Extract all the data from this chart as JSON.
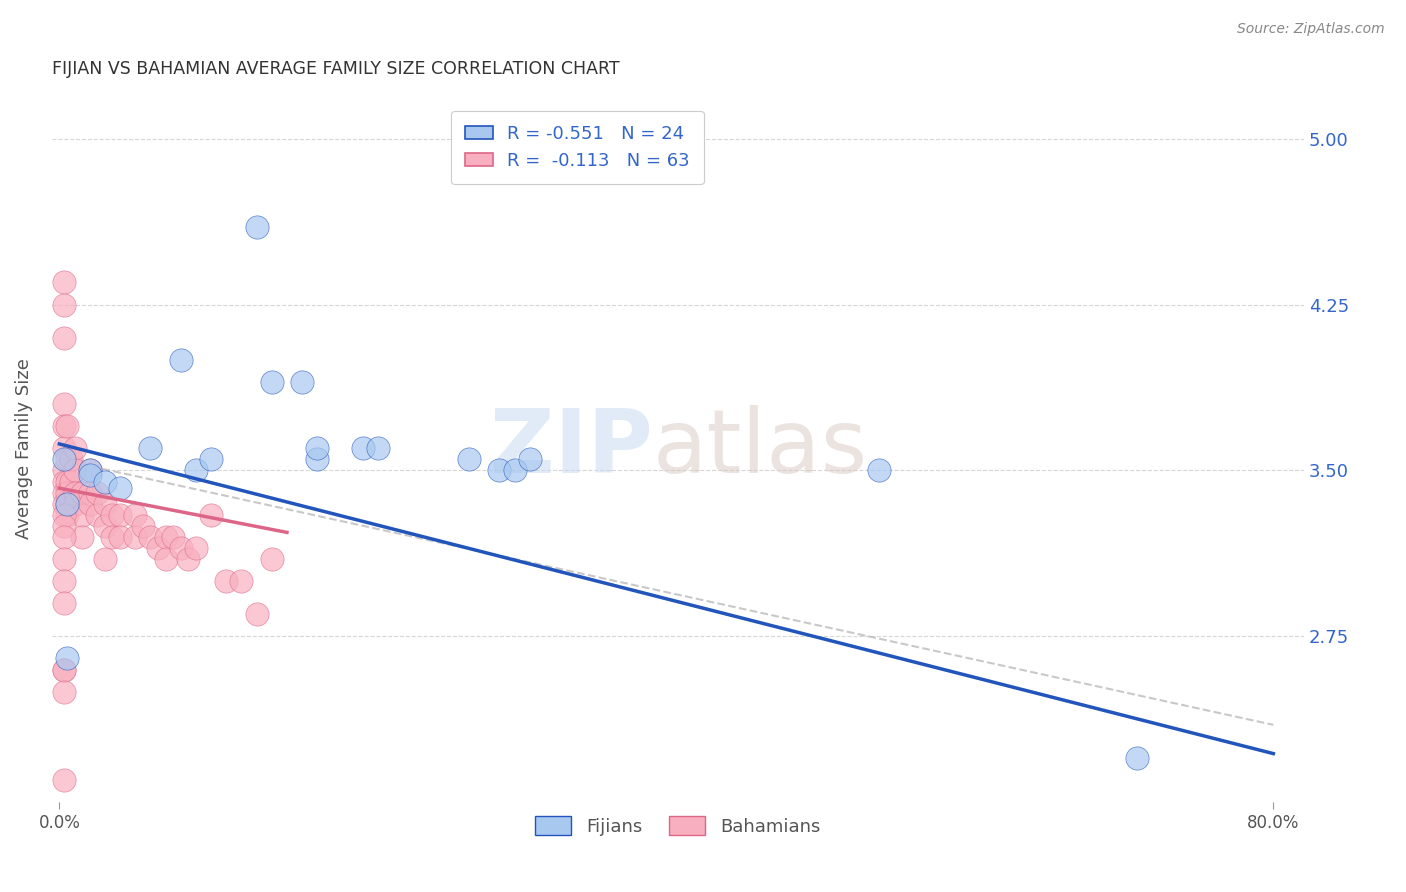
{
  "title": "FIJIAN VS BAHAMIAN AVERAGE FAMILY SIZE CORRELATION CHART",
  "source": "Source: ZipAtlas.com",
  "ylabel": "Average Family Size",
  "xlabel": "",
  "xlim": [
    -0.005,
    0.82
  ],
  "ylim": [
    2.0,
    5.2
  ],
  "yticks": [
    2.75,
    3.5,
    4.25,
    5.0
  ],
  "xticks": [
    0.0,
    0.8
  ],
  "xtick_labels": [
    "0.0%",
    "80.0%"
  ],
  "fijian_color": "#a8c8f0",
  "bahamian_color": "#f8b0c0",
  "fijian_line_color": "#2255bb",
  "bahamian_line_color": "#dd6688",
  "fijians_x": [
    0.003,
    0.02,
    0.02,
    0.03,
    0.04,
    0.06,
    0.08,
    0.09,
    0.1,
    0.13,
    0.14,
    0.16,
    0.17,
    0.17,
    0.2,
    0.21,
    0.27,
    0.29,
    0.3,
    0.31,
    0.005,
    0.005,
    0.54,
    0.71
  ],
  "fijians_y": [
    3.55,
    3.5,
    3.48,
    3.45,
    3.42,
    3.6,
    4.0,
    3.5,
    3.55,
    4.6,
    3.9,
    3.9,
    3.55,
    3.6,
    3.6,
    3.6,
    3.55,
    3.5,
    3.5,
    3.55,
    3.35,
    2.65,
    3.5,
    2.2
  ],
  "bahamians_x": [
    0.003,
    0.003,
    0.003,
    0.003,
    0.003,
    0.003,
    0.003,
    0.003,
    0.003,
    0.003,
    0.003,
    0.005,
    0.005,
    0.005,
    0.005,
    0.005,
    0.005,
    0.008,
    0.008,
    0.01,
    0.01,
    0.01,
    0.01,
    0.015,
    0.015,
    0.015,
    0.02,
    0.02,
    0.02,
    0.025,
    0.025,
    0.03,
    0.03,
    0.03,
    0.035,
    0.035,
    0.04,
    0.04,
    0.05,
    0.05,
    0.055,
    0.06,
    0.065,
    0.07,
    0.07,
    0.075,
    0.08,
    0.085,
    0.09,
    0.1,
    0.11,
    0.12,
    0.13,
    0.14,
    0.003,
    0.003,
    0.003,
    0.003,
    0.003,
    0.003,
    0.003,
    0.003,
    0.003
  ],
  "bahamians_y": [
    4.35,
    4.25,
    4.1,
    3.8,
    3.7,
    3.6,
    3.5,
    3.45,
    3.4,
    3.35,
    2.1,
    3.7,
    3.55,
    3.45,
    3.4,
    3.35,
    3.3,
    3.55,
    3.45,
    3.6,
    3.5,
    3.4,
    3.35,
    3.4,
    3.3,
    3.2,
    3.5,
    3.4,
    3.35,
    3.4,
    3.3,
    3.35,
    3.25,
    3.1,
    3.3,
    3.2,
    3.3,
    3.2,
    3.3,
    3.2,
    3.25,
    3.2,
    3.15,
    3.2,
    3.1,
    3.2,
    3.15,
    3.1,
    3.15,
    3.3,
    3.0,
    3.0,
    2.85,
    3.1,
    3.3,
    3.25,
    3.2,
    3.1,
    3.0,
    2.9,
    2.6,
    2.6,
    2.5
  ],
  "fijian_line_x0": 0.0,
  "fijian_line_y0": 3.62,
  "fijian_line_x1": 0.8,
  "fijian_line_y1": 2.22,
  "bahamian_line_x0": 0.0,
  "bahamian_line_y0": 3.42,
  "bahamian_line_x1": 0.15,
  "bahamian_line_y1": 3.22,
  "dashed_line_x0": 0.0,
  "dashed_line_y0": 3.55,
  "dashed_line_x1": 0.8,
  "dashed_line_y1": 2.35,
  "watermark_text": "ZIPatlas",
  "watermark_zip_color": "#c5d8f0",
  "watermark_atlas_color": "#d8c8c0",
  "background_color": "#ffffff",
  "grid_color": "#cccccc",
  "title_color": "#333333",
  "axis_label_color": "#555555",
  "right_ytick_color": "#3366cc",
  "legend_fijian_label": "R = -0.551   N = 24",
  "legend_bahamian_label": "R =  -0.113   N = 63"
}
